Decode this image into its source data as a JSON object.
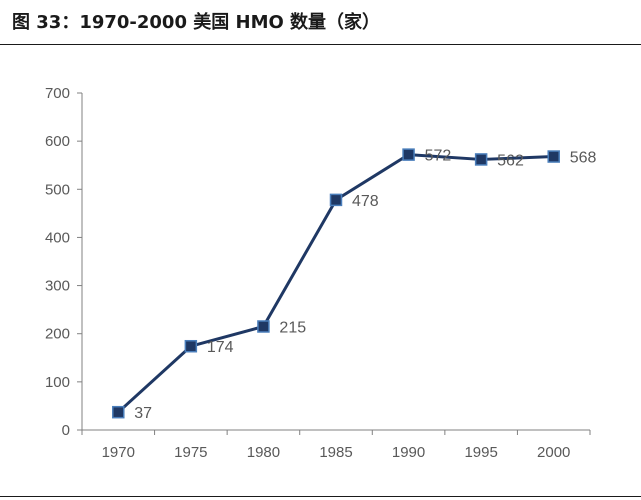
{
  "figure": {
    "title": "图 33：1970-2000 美国 HMO 数量（家）"
  },
  "colors": {
    "series_line": "#1f3864",
    "marker_fill": "#1f3864",
    "marker_stroke": "#4a7ebb",
    "axis": "#808080",
    "text": "#595959"
  },
  "chart_data": {
    "type": "line",
    "title": "",
    "xlabel": "",
    "ylabel": "",
    "categories": [
      "1970",
      "1975",
      "1980",
      "1985",
      "1990",
      "1995",
      "2000"
    ],
    "series": [
      {
        "values": [
          37,
          174,
          215,
          478,
          572,
          562,
          568
        ]
      }
    ],
    "data_labels": [
      "37",
      "174",
      "215",
      "478",
      "572",
      "562",
      "568"
    ],
    "ylim": [
      0,
      700
    ],
    "yticks": [
      0,
      100,
      200,
      300,
      400,
      500,
      600,
      700
    ],
    "grid": false,
    "legend": "none"
  }
}
